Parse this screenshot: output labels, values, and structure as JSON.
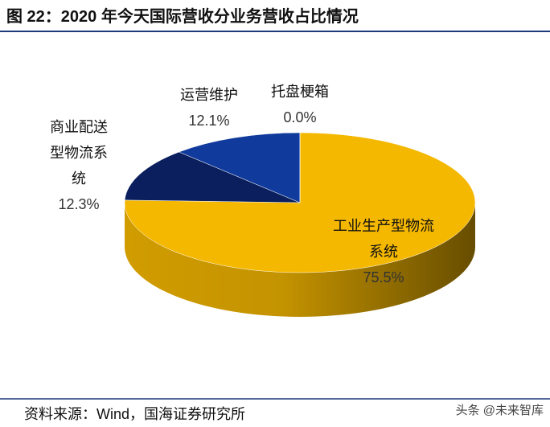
{
  "chart_data": {
    "type": "pie",
    "title": "图 22：2020 年今天国际营收分业务营收占比情况",
    "categories": [
      "工业生产型物流系统",
      "商业配送型物流系统",
      "运营维护",
      "托盘梗箱"
    ],
    "values": [
      75.5,
      12.3,
      12.1,
      0.0
    ],
    "value_labels": [
      "75.5%",
      "12.3%",
      "12.1%",
      "0.0%"
    ],
    "colors": [
      "#f5b800",
      "#0b1f5e",
      "#103a9c",
      "#7f7f7f"
    ],
    "source": "资料来源：Wind，国海证券研究所",
    "watermark": "头条 @未来智库"
  }
}
